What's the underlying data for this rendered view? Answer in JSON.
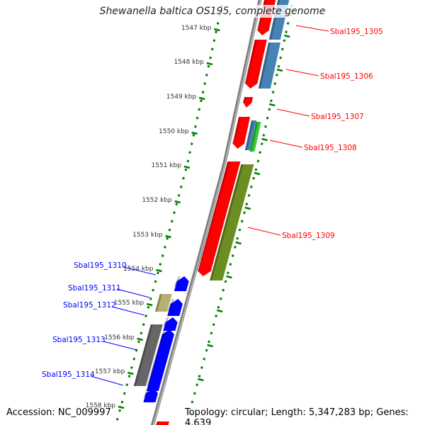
{
  "title": "Shewanella baltica OS195, complete genome",
  "accession": "Accession: NC_009997",
  "summary": "Topology: circular; Length: 5,347,283 bp; Genes: 4,639",
  "ticks": [
    "1547 kbp",
    "1548 kbp",
    "1549 kbp",
    "1550 kbp",
    "1551 kbp",
    "1552 kbp",
    "1553 kbp",
    "1554 kbp",
    "1555 kbp",
    "1556 kbp",
    "1557 kbp",
    "1558 kbp"
  ],
  "forward_labels": [
    "Sbal195_1305",
    "Sbal195_1306",
    "Sbal195_1307",
    "Sbal195_1308",
    "Sbal195_1309"
  ],
  "reverse_labels": [
    "Sbal195_1310",
    "Sbal195_1311",
    "Sbal195_1312",
    "Sbal195_1313",
    "Sbal195_1314"
  ],
  "colors": {
    "forward_cds": "#ff0000",
    "reverse_cds": "#0000ff",
    "steelblue": "#4682b4",
    "green": "#33cc33",
    "olive": "#6b8e23",
    "khaki": "#b5b070",
    "gray": "#666666",
    "backbone": "#808080",
    "ticks": "#008000"
  }
}
